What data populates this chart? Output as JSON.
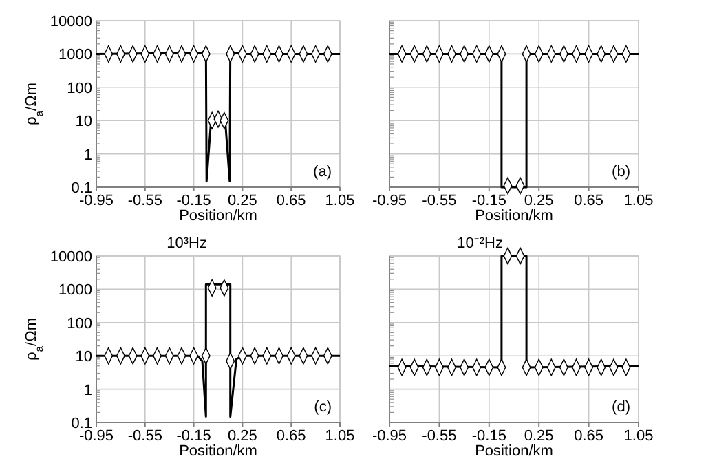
{
  "chart_data": [
    {
      "type": "line",
      "xlabel": "Position/km",
      "ylabel": "ρ$_{a}$/Ωm",
      "log": "y",
      "grid": true,
      "xlim": [
        -0.95,
        1.05
      ],
      "xticks": [
        -0.95,
        -0.55,
        -0.15,
        0.25,
        0.65,
        1.05
      ],
      "ylim": [
        0.1,
        10000
      ],
      "yticks": [
        0.1,
        1,
        10,
        100,
        1000,
        10000
      ],
      "annotations": [
        "(a)"
      ],
      "series": [
        {
          "type": "line",
          "color": "#000000",
          "marker": "none",
          "x": [
            -0.95,
            -0.08,
            -0.05,
            -0.045,
            -0.01,
            0.03,
            0.07,
            0.11,
            0.145,
            0.15,
            0.18,
            0.25,
            1.05
          ],
          "values": [
            1000,
            1100,
            1400,
            0.15,
            8,
            11,
            11,
            8,
            0.15,
            1400,
            1100,
            1000,
            1000
          ]
        },
        {
          "type": "scatter",
          "color": "#000000",
          "marker": "diamond",
          "x": [
            -0.85,
            -0.75,
            -0.65,
            -0.55,
            -0.45,
            -0.35,
            -0.25,
            -0.15,
            -0.05,
            0.0,
            0.05,
            0.1,
            0.15,
            0.25,
            0.35,
            0.45,
            0.55,
            0.65,
            0.75,
            0.85,
            0.95
          ],
          "values": [
            1000,
            1000,
            1000,
            1000,
            1000,
            1000,
            1000,
            1000,
            1000,
            10,
            11,
            10,
            1000,
            1000,
            1000,
            1000,
            1000,
            1000,
            1000,
            1000,
            1000
          ]
        }
      ]
    },
    {
      "type": "line",
      "xlabel": "Position/km",
      "log": "y",
      "grid": true,
      "tick_labels": "x",
      "xlim": [
        -0.95,
        1.05
      ],
      "xticks": [
        -0.95,
        -0.55,
        -0.15,
        0.25,
        0.65,
        1.05
      ],
      "ylim": [
        0.1,
        10000
      ],
      "yticks": [
        0.1,
        1,
        10,
        100,
        1000,
        10000
      ],
      "annotations": [
        "(b)"
      ],
      "series": [
        {
          "type": "line",
          "color": "#000000",
          "marker": "none",
          "x": [
            -0.95,
            -0.05,
            -0.05,
            0.15,
            0.15,
            1.05
          ],
          "values": [
            1000,
            1000,
            0.1,
            0.1,
            1000,
            1000
          ]
        },
        {
          "type": "scatter",
          "color": "#000000",
          "marker": "diamond",
          "x": [
            -0.85,
            -0.75,
            -0.65,
            -0.55,
            -0.45,
            -0.35,
            -0.25,
            -0.15,
            -0.05,
            0.0,
            0.1,
            0.15,
            0.25,
            0.35,
            0.45,
            0.55,
            0.65,
            0.75,
            0.85,
            0.95
          ],
          "values": [
            1000,
            1000,
            1000,
            1000,
            1000,
            1000,
            1000,
            1000,
            1000,
            0.11,
            0.11,
            1000,
            1000,
            1000,
            1000,
            1000,
            1000,
            1000,
            1000,
            1000
          ]
        }
      ]
    },
    {
      "type": "line",
      "title": "10³Hz",
      "xlabel": "Position/km",
      "ylabel": "ρ$_{a}$/Ωm",
      "log": "y",
      "grid": true,
      "xlim": [
        -0.95,
        1.05
      ],
      "xticks": [
        -0.95,
        -0.55,
        -0.15,
        0.25,
        0.65,
        1.05
      ],
      "ylim": [
        0.1,
        10000
      ],
      "yticks": [
        0.1,
        1,
        10,
        100,
        1000,
        10000
      ],
      "annotations": [
        "(c)"
      ],
      "series": [
        {
          "type": "line",
          "color": "#000000",
          "marker": "none",
          "x": [
            -0.95,
            -0.12,
            -0.08,
            -0.05,
            -0.05,
            0.15,
            0.15,
            0.2,
            0.25,
            1.05
          ],
          "values": [
            10,
            10,
            7,
            0.15,
            1400,
            1400,
            0.15,
            8,
            10,
            10
          ]
        },
        {
          "type": "scatter",
          "color": "#000000",
          "marker": "diamond",
          "x": [
            -0.85,
            -0.75,
            -0.65,
            -0.55,
            -0.45,
            -0.35,
            -0.25,
            -0.15,
            -0.05,
            0.0,
            0.1,
            0.15,
            0.25,
            0.35,
            0.45,
            0.55,
            0.65,
            0.75,
            0.85,
            0.95
          ],
          "values": [
            10,
            10,
            10,
            10,
            10,
            10,
            10,
            10,
            10,
            1100,
            1100,
            7,
            10,
            10,
            10,
            10,
            10,
            10,
            10,
            10
          ]
        }
      ]
    },
    {
      "type": "line",
      "title": "10⁻²Hz",
      "xlabel": "Position/km",
      "log": "y",
      "grid": true,
      "tick_labels": "x",
      "xlim": [
        -0.95,
        1.05
      ],
      "xticks": [
        -0.95,
        -0.55,
        -0.15,
        0.25,
        0.65,
        1.05
      ],
      "ylim": [
        0.1,
        10000
      ],
      "yticks": [
        0.1,
        1,
        10,
        100,
        1000,
        10000
      ],
      "annotations": [
        "(d)"
      ],
      "series": [
        {
          "type": "line",
          "color": "#000000",
          "marker": "none",
          "x": [
            -0.95,
            -0.05,
            -0.05,
            0.15,
            0.15,
            1.05
          ],
          "values": [
            5,
            4.5,
            10000,
            10000,
            4.5,
            5
          ]
        },
        {
          "type": "scatter",
          "color": "#000000",
          "marker": "diamond",
          "x": [
            -0.85,
            -0.75,
            -0.65,
            -0.55,
            -0.45,
            -0.35,
            -0.25,
            -0.15,
            -0.05,
            0.0,
            0.1,
            0.15,
            0.25,
            0.35,
            0.45,
            0.55,
            0.65,
            0.75,
            0.85,
            0.95
          ],
          "values": [
            4.5,
            4.5,
            4.5,
            4.5,
            4.5,
            4.5,
            4.5,
            4.5,
            4.5,
            10000,
            10000,
            4.5,
            4.5,
            4.5,
            4.5,
            4.5,
            4.5,
            4.5,
            4.5,
            4.5
          ]
        }
      ]
    }
  ]
}
